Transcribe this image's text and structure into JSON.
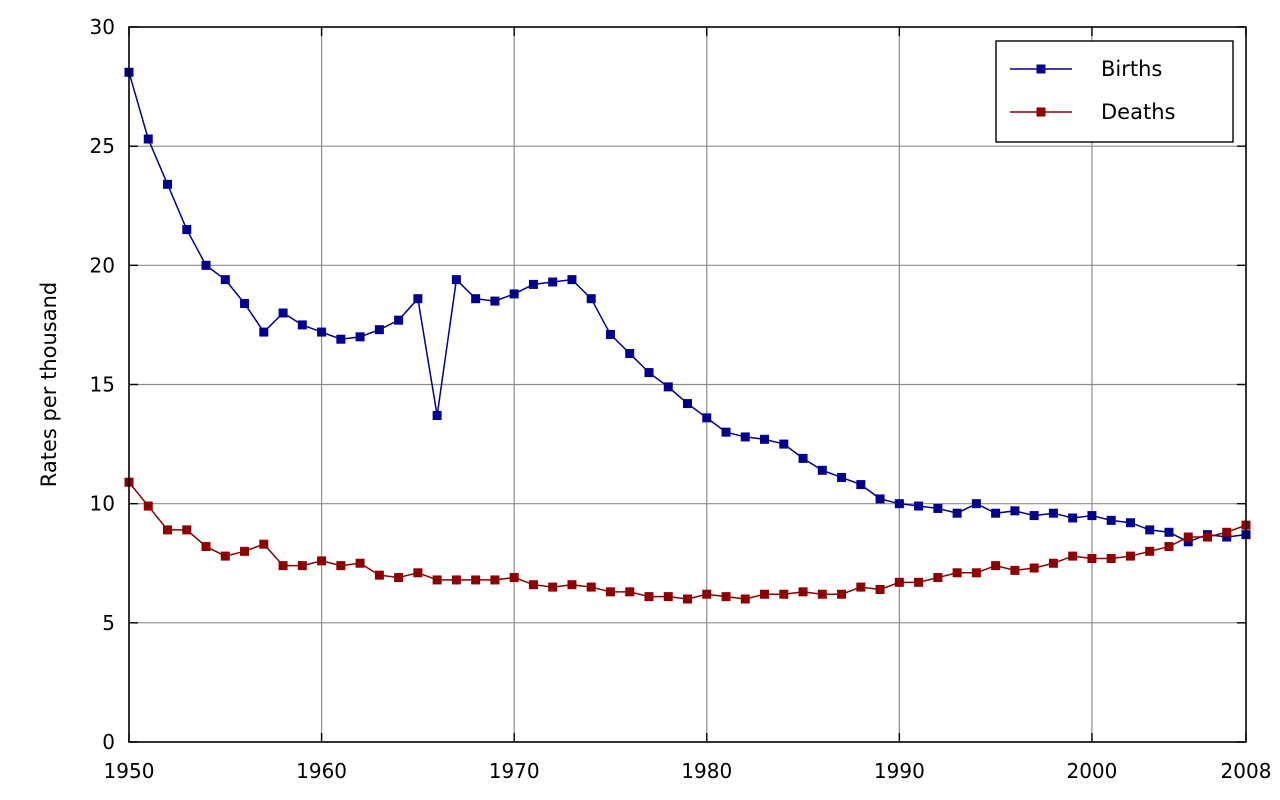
{
  "chart_data": {
    "type": "line",
    "title": "",
    "xlabel": "",
    "ylabel": "Rates per thousand",
    "xlim": [
      1950,
      2008
    ],
    "ylim": [
      0,
      30
    ],
    "x_ticks": [
      1950,
      1960,
      1970,
      1980,
      1990,
      2000,
      2008
    ],
    "y_ticks": [
      0,
      5,
      10,
      15,
      20,
      25,
      30
    ],
    "grid": true,
    "legend_position": "top-right",
    "x": [
      1950,
      1951,
      1952,
      1953,
      1954,
      1955,
      1956,
      1957,
      1958,
      1959,
      1960,
      1961,
      1962,
      1963,
      1964,
      1965,
      1966,
      1967,
      1968,
      1969,
      1970,
      1971,
      1972,
      1973,
      1974,
      1975,
      1976,
      1977,
      1978,
      1979,
      1980,
      1981,
      1982,
      1983,
      1984,
      1985,
      1986,
      1987,
      1988,
      1989,
      1990,
      1991,
      1992,
      1993,
      1994,
      1995,
      1996,
      1997,
      1998,
      1999,
      2000,
      2001,
      2002,
      2003,
      2004,
      2005,
      2006,
      2007,
      2008
    ],
    "series": [
      {
        "name": "Births",
        "color": "#00008b",
        "marker": "square",
        "values": [
          28.1,
          25.3,
          23.4,
          21.5,
          20.0,
          19.4,
          18.4,
          17.2,
          18.0,
          17.5,
          17.2,
          16.9,
          17.0,
          17.3,
          17.7,
          18.6,
          13.7,
          19.4,
          18.6,
          18.5,
          18.8,
          19.2,
          19.3,
          19.4,
          18.6,
          17.1,
          16.3,
          15.5,
          14.9,
          14.2,
          13.6,
          13.0,
          12.8,
          12.7,
          12.5,
          11.9,
          11.4,
          11.1,
          10.8,
          10.2,
          10.0,
          9.9,
          9.8,
          9.6,
          10.0,
          9.6,
          9.7,
          9.5,
          9.6,
          9.4,
          9.5,
          9.3,
          9.2,
          8.9,
          8.8,
          8.4,
          8.7,
          8.6,
          8.7
        ]
      },
      {
        "name": "Deaths",
        "color": "#8b0000",
        "marker": "square",
        "values": [
          10.9,
          9.9,
          8.9,
          8.9,
          8.2,
          7.8,
          8.0,
          8.3,
          7.4,
          7.4,
          7.6,
          7.4,
          7.5,
          7.0,
          6.9,
          7.1,
          6.8,
          6.8,
          6.8,
          6.8,
          6.9,
          6.6,
          6.5,
          6.6,
          6.5,
          6.3,
          6.3,
          6.1,
          6.1,
          6.0,
          6.2,
          6.1,
          6.0,
          6.2,
          6.2,
          6.3,
          6.2,
          6.2,
          6.5,
          6.4,
          6.7,
          6.7,
          6.9,
          7.1,
          7.1,
          7.4,
          7.2,
          7.3,
          7.5,
          7.8,
          7.7,
          7.7,
          7.8,
          8.0,
          8.2,
          8.6,
          8.6,
          8.8,
          9.1
        ]
      }
    ]
  }
}
